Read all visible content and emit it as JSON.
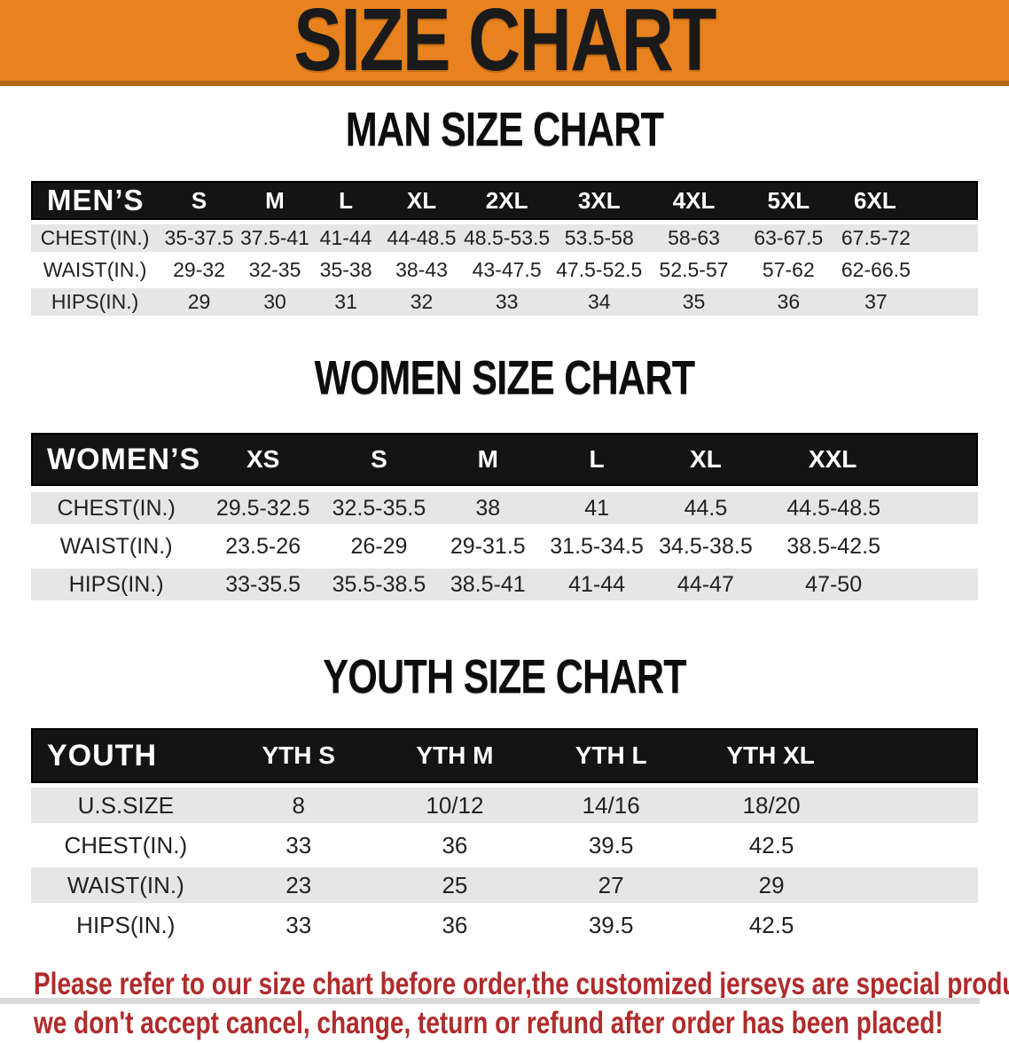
{
  "banner": {
    "title": "SIZE CHART",
    "bg_color": "#e8821e",
    "border_color": "#b3650f"
  },
  "sections": {
    "men": {
      "title": "MAN SIZE CHART",
      "table": {
        "header": [
          "MEN’S",
          "S",
          "M",
          "L",
          "XL",
          "2XL",
          "3XL",
          "4XL",
          "5XL",
          "6XL"
        ],
        "rows": [
          [
            "CHEST(IN.)",
            "35-37.5",
            "37.5-41",
            "41-44",
            "44-48.5",
            "48.5-53.5",
            "53.5-58",
            "58-63",
            "63-67.5",
            "67.5-72"
          ],
          [
            "WAIST(IN.)",
            "29-32",
            "32-35",
            "35-38",
            "38-43",
            "43-47.5",
            "47.5-52.5",
            "52.5-57",
            "57-62",
            "62-66.5"
          ],
          [
            "HIPS(IN.)",
            "29",
            "30",
            "31",
            "32",
            "33",
            "34",
            "35",
            "36",
            "37"
          ]
        ]
      }
    },
    "women": {
      "title": "WOMEN SIZE CHART",
      "table": {
        "header": [
          "WOMEN’S",
          "XS",
          "S",
          "M",
          "L",
          "XL",
          "XXL"
        ],
        "rows": [
          [
            "CHEST(IN.)",
            "29.5-32.5",
            "32.5-35.5",
            "38",
            "41",
            "44.5",
            "44.5-48.5"
          ],
          [
            "WAIST(IN.)",
            "23.5-26",
            "26-29",
            "29-31.5",
            "31.5-34.5",
            "34.5-38.5",
            "38.5-42.5"
          ],
          [
            "HIPS(IN.)",
            "33-35.5",
            "35.5-38.5",
            "38.5-41",
            "41-44",
            "44-47",
            "47-50"
          ]
        ]
      }
    },
    "youth": {
      "title": "YOUTH SIZE CHART",
      "table": {
        "header": [
          "YOUTH",
          "YTH S",
          "YTH M",
          "YTH L",
          "YTH XL"
        ],
        "rows": [
          [
            "U.S.SIZE",
            "8",
            "10/12",
            "14/16",
            "18/20"
          ],
          [
            "CHEST(IN.)",
            "33",
            "36",
            "39.5",
            "42.5"
          ],
          [
            "WAIST(IN.)",
            "23",
            "25",
            "27",
            "29"
          ],
          [
            "HIPS(IN.)",
            "33",
            "36",
            "39.5",
            "42.5"
          ]
        ]
      }
    }
  },
  "disclaimer": {
    "line1": "Please refer to our size chart before order,the customized jerseys are special products,",
    "line2": "we don't accept cancel, change, teturn or refund after order has been placed!",
    "text_color": "#b02b2b"
  }
}
